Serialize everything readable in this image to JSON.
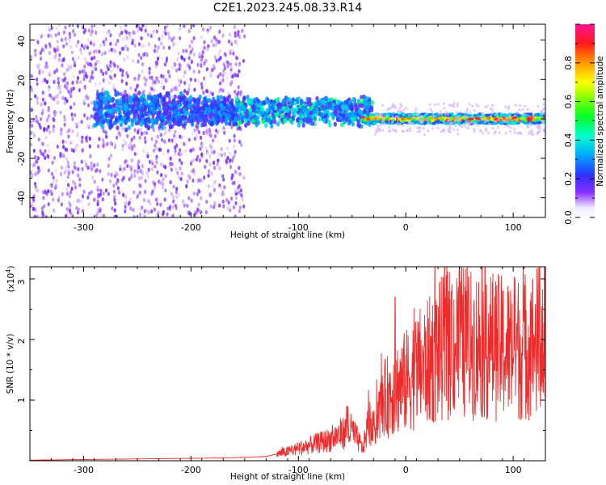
{
  "title": "C2E1.2023.245.08.33.R14",
  "colors": {
    "line_series": "#ee2a2a",
    "heat_base": "#7a10e0",
    "frame": "#000000"
  },
  "chart_data": [
    {
      "type": "heatmap",
      "xlabel": "Height of straight line (km)",
      "ylabel": "Frequency (Hz)",
      "xlim": [
        -350,
        130
      ],
      "ylim": [
        -50,
        48
      ],
      "x_ticks": [
        "-300",
        "-200",
        "-100",
        "0",
        "100"
      ],
      "y_ticks": [
        "40",
        "20",
        "0",
        "-20",
        "-40"
      ],
      "colorbar": {
        "label": "Normalized spectral amplitude",
        "range": [
          0,
          1
        ],
        "ticks": [
          "0.0",
          "0.2",
          "0.4",
          "0.6",
          "0.8"
        ],
        "colormap": "rainbow (purple to red)"
      },
      "features": [
        {
          "description": "scattered noise",
          "x_range": [
            -350,
            -150
          ],
          "y_range": [
            -50,
            48
          ],
          "amplitude": 0.1
        },
        {
          "description": "central signal band",
          "x_range": [
            -290,
            -30
          ],
          "y_range": [
            -10,
            15
          ],
          "amplitude": 0.35
        },
        {
          "description": "narrow centered signal",
          "x_range": [
            -30,
            130
          ],
          "y_range": [
            -3,
            3
          ],
          "amplitude": 0.9
        }
      ]
    },
    {
      "type": "line",
      "xlabel": "Height of straight line (km)",
      "ylabel": "SNR (10 * v/v)",
      "yscale_label": "(x10",
      "yscale_exp": "4",
      "xlim": [
        -350,
        130
      ],
      "ylim": [
        0,
        3.2
      ],
      "x_ticks": [
        "-300",
        "-200",
        "-100",
        "0",
        "100"
      ],
      "y_ticks": [
        "1",
        "2",
        "3"
      ],
      "series": [
        {
          "x": [
            -350,
            -300,
            -250,
            -200,
            -160,
            -130,
            -110,
            -100,
            -90,
            -80,
            -70,
            -60,
            -50,
            -40,
            -35,
            -30,
            -25,
            -20,
            -10,
            0,
            10,
            20,
            30,
            40,
            50,
            60,
            70,
            80,
            90,
            100,
            110,
            120,
            130
          ],
          "y": [
            0.01,
            0.02,
            0.03,
            0.04,
            0.05,
            0.07,
            0.15,
            0.2,
            0.25,
            0.3,
            0.35,
            0.45,
            0.5,
            0.2,
            0.6,
            0.5,
            0.8,
            1.0,
            1.2,
            1.3,
            1.5,
            1.6,
            1.8,
            1.9,
            2.0,
            1.9,
            1.95,
            1.9,
            1.85,
            1.85,
            1.9,
            1.95,
            2.0
          ],
          "peaks": [
            [
              -55,
              0.9
            ],
            [
              -10,
              2.7
            ],
            [
              50,
              3.2
            ],
            [
              40,
              2.8
            ],
            [
              75,
              2.9
            ],
            [
              110,
              2.3
            ]
          ],
          "color": "#ee2a2a"
        }
      ]
    }
  ]
}
